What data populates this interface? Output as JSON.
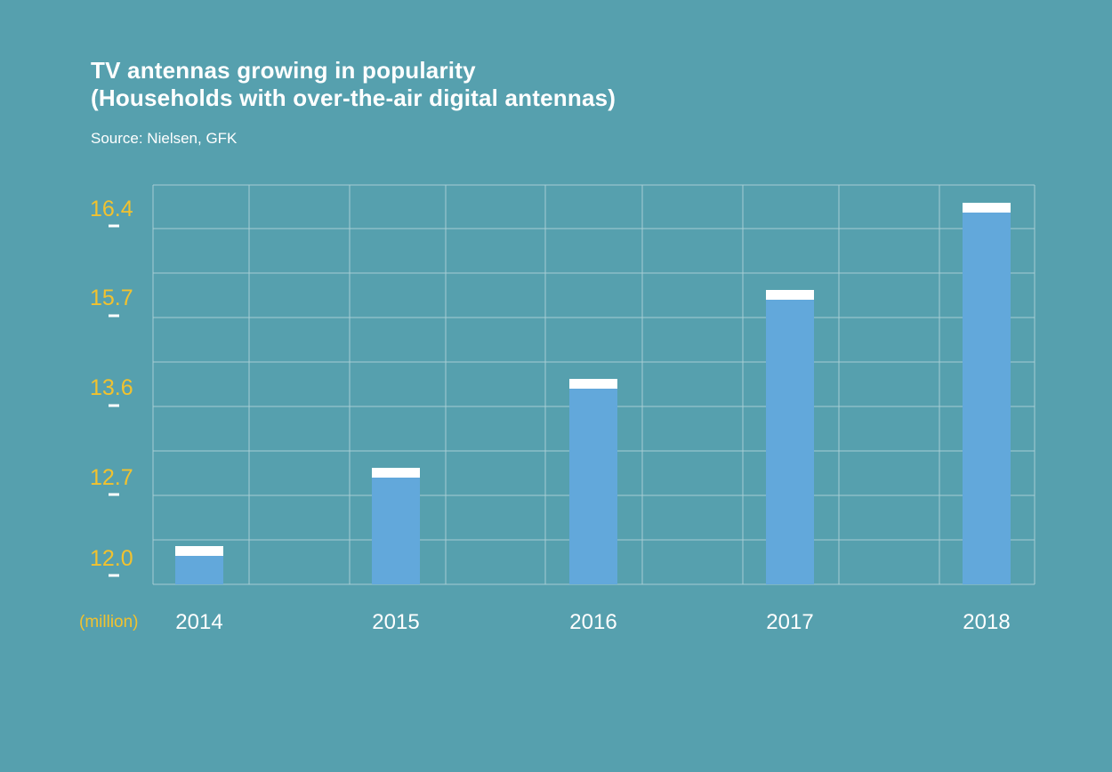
{
  "title_line1": "TV antennas growing in popularity",
  "title_line2": "(Households with over-the-air digital antennas)",
  "source": "Source: Nielsen, GFK",
  "colors": {
    "background": "#56a0ae",
    "bar": "#62a8db",
    "bar_cap": "#ffffff",
    "y_label": "#f2c22e",
    "grid": "#a7cdd4",
    "text": "#ffffff"
  },
  "chart_data": {
    "type": "bar",
    "categories": [
      "2014",
      "2015",
      "2016",
      "2017",
      "2018"
    ],
    "values": [
      12.0,
      12.7,
      13.6,
      15.7,
      16.4
    ],
    "y_ticks": [
      "12.0",
      "12.7",
      "13.6",
      "15.7",
      "16.4"
    ],
    "unit_label": "(million)",
    "grid": true
  }
}
